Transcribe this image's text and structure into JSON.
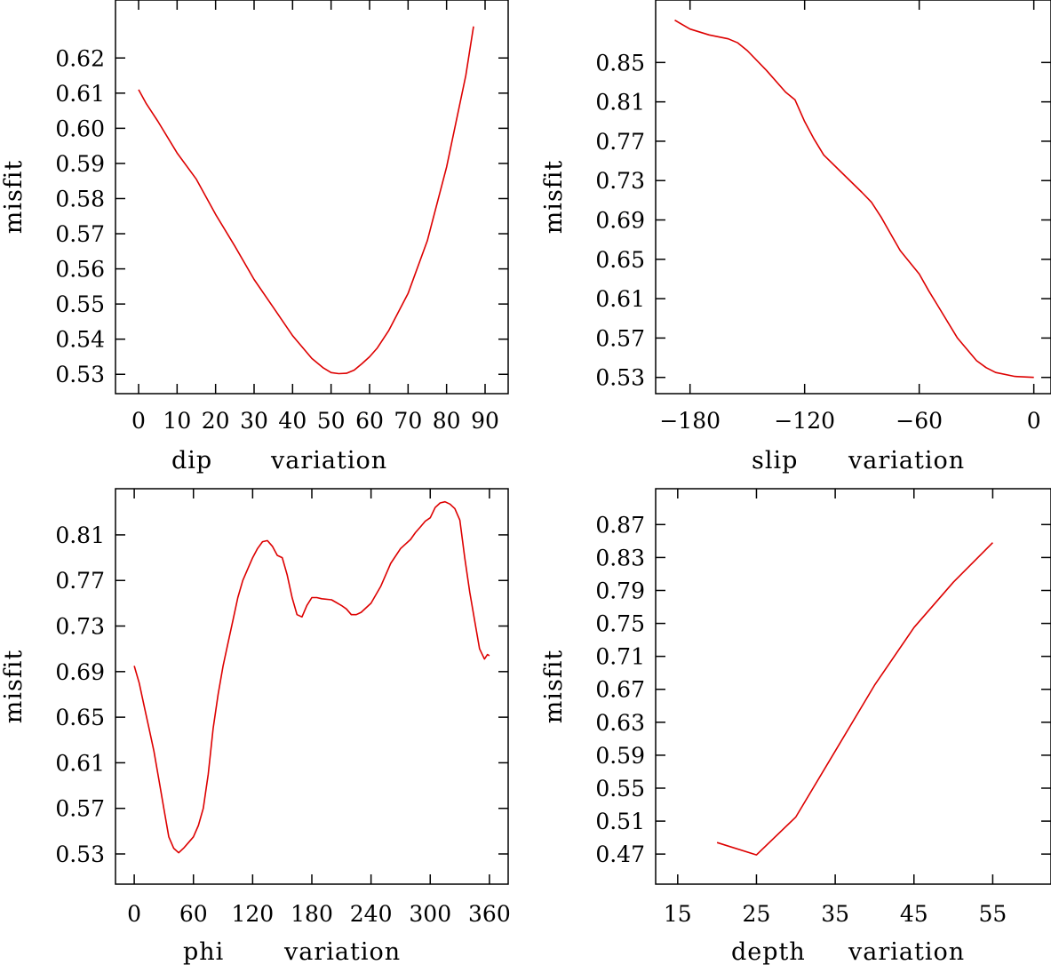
{
  "chart_data": [
    {
      "type": "line",
      "xlabel_parts": [
        "dip",
        "variation"
      ],
      "ylabel": "misfit",
      "xlim": [
        -6,
        96
      ],
      "ylim": [
        0.5245,
        0.6365
      ],
      "xticks": [
        0,
        10,
        20,
        30,
        40,
        50,
        60,
        70,
        80,
        90
      ],
      "xtick_labels": [
        "0",
        "10",
        "20",
        "30",
        "40",
        "50",
        "60",
        "70",
        "80",
        "90"
      ],
      "yticks": [
        0.53,
        0.54,
        0.55,
        0.56,
        0.57,
        0.58,
        0.59,
        0.6,
        0.61,
        0.62
      ],
      "ytick_labels": [
        "0.53",
        "0.54",
        "0.55",
        "0.56",
        "0.57",
        "0.58",
        "0.59",
        "0.60",
        "0.61",
        "0.62"
      ],
      "series": [
        {
          "name": "misfit",
          "color": "#dd0000",
          "x": [
            0,
            2,
            5,
            10,
            15,
            20,
            25,
            30,
            35,
            40,
            45,
            48,
            50,
            52,
            54,
            56,
            58,
            60,
            62,
            65,
            70,
            75,
            80,
            85,
            87
          ],
          "y": [
            0.611,
            0.607,
            0.602,
            0.593,
            0.5855,
            0.5755,
            0.5665,
            0.557,
            0.549,
            0.541,
            0.5345,
            0.5318,
            0.5305,
            0.5302,
            0.5303,
            0.5312,
            0.533,
            0.535,
            0.5375,
            0.5425,
            0.553,
            0.568,
            0.589,
            0.615,
            0.629
          ]
        }
      ]
    },
    {
      "type": "line",
      "xlabel_parts": [
        "slip",
        "variation"
      ],
      "ylabel": "misfit",
      "xlim": [
        -198,
        9
      ],
      "ylim": [
        0.5135,
        0.9135
      ],
      "xticks": [
        -180,
        -120,
        -60,
        0
      ],
      "xtick_labels": [
        "−180",
        "−120",
        "−60",
        "0"
      ],
      "yticks": [
        0.53,
        0.57,
        0.61,
        0.65,
        0.69,
        0.73,
        0.77,
        0.81,
        0.85
      ],
      "ytick_labels": [
        "0.53",
        "0.57",
        "0.61",
        "0.65",
        "0.69",
        "0.73",
        "0.77",
        "0.81",
        "0.85"
      ],
      "series": [
        {
          "name": "misfit",
          "color": "#dd0000",
          "x": [
            -188,
            -180,
            -170,
            -160,
            -155,
            -150,
            -140,
            -130,
            -125,
            -120,
            -115,
            -110,
            -100,
            -90,
            -85,
            -80,
            -75,
            -70,
            -60,
            -55,
            -50,
            -40,
            -30,
            -25,
            -20,
            -10,
            0
          ],
          "y": [
            0.893,
            0.884,
            0.878,
            0.874,
            0.87,
            0.862,
            0.842,
            0.82,
            0.812,
            0.79,
            0.772,
            0.756,
            0.737,
            0.718,
            0.708,
            0.693,
            0.676,
            0.659,
            0.635,
            0.618,
            0.602,
            0.57,
            0.547,
            0.54,
            0.535,
            0.531,
            0.53
          ]
        }
      ]
    },
    {
      "type": "line",
      "xlabel_parts": [
        "phi",
        "variation"
      ],
      "ylabel": "misfit",
      "xlim": [
        -19,
        379
      ],
      "ylim": [
        0.5035,
        0.8505
      ],
      "xticks": [
        0,
        60,
        120,
        180,
        240,
        300,
        360
      ],
      "xtick_labels": [
        "0",
        "60",
        "120",
        "180",
        "240",
        "300",
        "360"
      ],
      "yticks": [
        0.53,
        0.57,
        0.61,
        0.65,
        0.69,
        0.73,
        0.77,
        0.81
      ],
      "ytick_labels": [
        "0.53",
        "0.57",
        "0.61",
        "0.65",
        "0.69",
        "0.73",
        "0.77",
        "0.81"
      ],
      "series": [
        {
          "name": "misfit",
          "color": "#dd0000",
          "x": [
            0,
            5,
            10,
            15,
            20,
            25,
            30,
            35,
            40,
            45,
            50,
            55,
            60,
            65,
            70,
            75,
            80,
            85,
            90,
            95,
            100,
            105,
            110,
            115,
            120,
            125,
            130,
            135,
            140,
            145,
            150,
            155,
            160,
            165,
            170,
            175,
            180,
            185,
            190,
            200,
            210,
            215,
            220,
            225,
            230,
            240,
            250,
            260,
            270,
            280,
            285,
            290,
            295,
            300,
            305,
            310,
            315,
            320,
            325,
            330,
            335,
            340,
            345,
            350,
            355,
            358,
            360
          ],
          "y": [
            0.695,
            0.68,
            0.66,
            0.64,
            0.62,
            0.595,
            0.57,
            0.545,
            0.535,
            0.531,
            0.535,
            0.54,
            0.545,
            0.555,
            0.57,
            0.6,
            0.64,
            0.67,
            0.695,
            0.715,
            0.735,
            0.755,
            0.77,
            0.78,
            0.79,
            0.798,
            0.804,
            0.805,
            0.8,
            0.792,
            0.79,
            0.775,
            0.755,
            0.74,
            0.738,
            0.748,
            0.755,
            0.755,
            0.754,
            0.753,
            0.748,
            0.745,
            0.74,
            0.74,
            0.742,
            0.75,
            0.765,
            0.785,
            0.798,
            0.806,
            0.812,
            0.817,
            0.822,
            0.825,
            0.834,
            0.838,
            0.839,
            0.837,
            0.833,
            0.823,
            0.79,
            0.76,
            0.735,
            0.71,
            0.701,
            0.705,
            0.704
          ]
        }
      ]
    },
    {
      "type": "line",
      "xlabel_parts": [
        "depth",
        "variation"
      ],
      "ylabel": "misfit",
      "xlim": [
        12.2,
        62.4
      ],
      "ylim": [
        0.4335,
        0.9135
      ],
      "xticks": [
        15,
        25,
        35,
        45,
        55
      ],
      "xtick_labels": [
        "15",
        "25",
        "35",
        "45",
        "55"
      ],
      "yticks": [
        0.47,
        0.51,
        0.55,
        0.59,
        0.63,
        0.67,
        0.71,
        0.75,
        0.79,
        0.83,
        0.87
      ],
      "ytick_labels": [
        "0.47",
        "0.51",
        "0.55",
        "0.59",
        "0.63",
        "0.67",
        "0.71",
        "0.75",
        "0.79",
        "0.83",
        "0.87"
      ],
      "series": [
        {
          "name": "misfit",
          "color": "#dd0000",
          "x": [
            20,
            25,
            30,
            35,
            40,
            45,
            50,
            55
          ],
          "y": [
            0.484,
            0.469,
            0.515,
            0.595,
            0.675,
            0.745,
            0.8,
            0.848
          ]
        }
      ]
    }
  ]
}
